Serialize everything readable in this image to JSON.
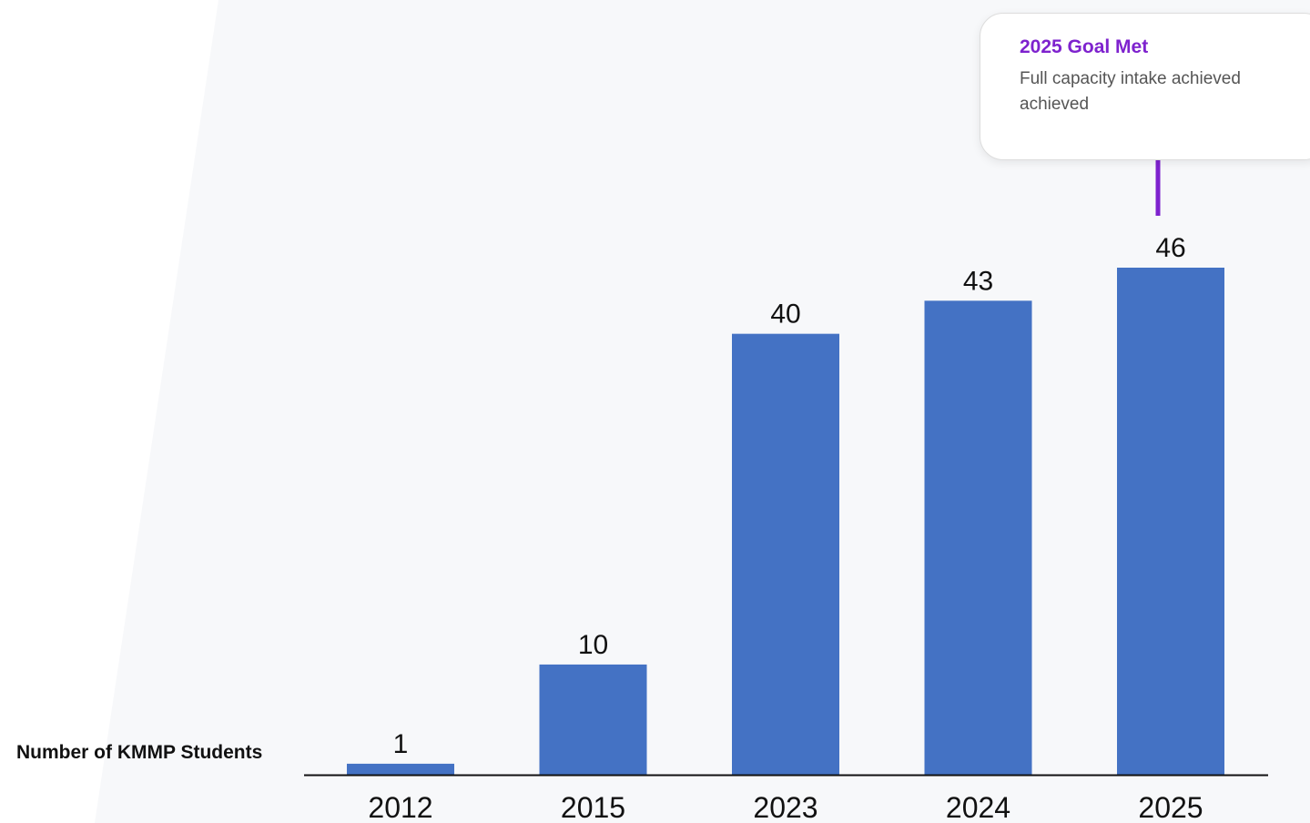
{
  "chart_data": {
    "type": "bar",
    "categories": [
      "2012",
      "2015",
      "2023",
      "2024",
      "2025"
    ],
    "values": [
      1,
      10,
      40,
      43,
      46
    ],
    "ylabel": "Number of KMMP Students",
    "ylim": [
      0,
      46
    ],
    "grid": false,
    "bar_color": "#4472c4",
    "axis_color": "#111111"
  },
  "callout": {
    "title": "2025 Goal Met",
    "text": "Full capacity intake achieved achieved",
    "title_color": "#7e22ce",
    "connector_color": "#7e22ce",
    "target_category": "2025"
  },
  "colors": {
    "background": "#ffffff",
    "panel": "#f7f8fa"
  }
}
